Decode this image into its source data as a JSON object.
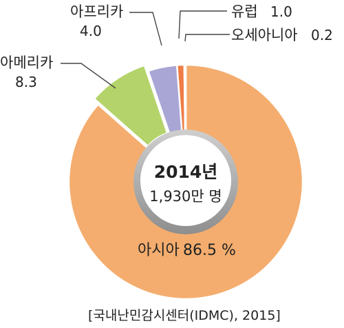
{
  "chart_data": {
    "type": "pie",
    "title": "",
    "center": {
      "year": "2014년",
      "total": "1,930만 명"
    },
    "slices": [
      {
        "label": "아시아",
        "value": 86.5,
        "value_text": "86.5 %",
        "color": "#f4ad6e"
      },
      {
        "label": "아메리카",
        "value": 8.3,
        "value_text": "8.3",
        "color": "#b4d36a"
      },
      {
        "label": "아프리카",
        "value": 4.0,
        "value_text": "4.0",
        "color": "#a9a6d6"
      },
      {
        "label": "유럽",
        "value": 1.0,
        "value_text": "1.0",
        "color": "#ef7c45"
      },
      {
        "label": "오세아니아",
        "value": 0.2,
        "value_text": "0.2",
        "color": "#4cc8cf"
      }
    ],
    "source": "[국내난민감시센터(IDMC), 2015]"
  }
}
